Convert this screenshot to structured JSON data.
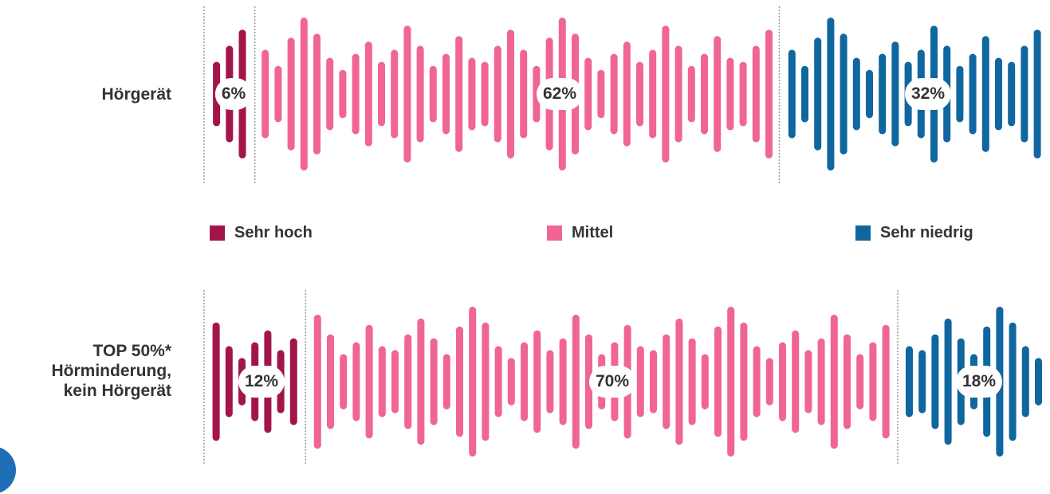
{
  "chart_data": {
    "type": "bar",
    "stacked": true,
    "categories": [
      "Hörgerät",
      "TOP 50%* Hörminderung, kein Hörgerät"
    ],
    "category_lines": [
      [
        "Hörgerät"
      ],
      [
        "TOP 50%*",
        "Hörminderung,",
        "kein Hörgerät"
      ]
    ],
    "series": [
      {
        "name": "Sehr hoch",
        "values": [
          6,
          12
        ],
        "labels": [
          "6%",
          "12%"
        ]
      },
      {
        "name": "Mittel",
        "values": [
          62,
          70
        ],
        "labels": [
          "62%",
          "70%"
        ]
      },
      {
        "name": "Sehr niedrig",
        "values": [
          32,
          18
        ],
        "labels": [
          "32%",
          "18%"
        ]
      }
    ],
    "unit": "%",
    "xlim": [
      0,
      100
    ],
    "legend_position": "between-rows",
    "colors": {
      "Sehr hoch": "#a3154a",
      "Mittel": "#f06595",
      "Sehr niedrig": "#10669f"
    },
    "style": "soundwave-bars"
  }
}
